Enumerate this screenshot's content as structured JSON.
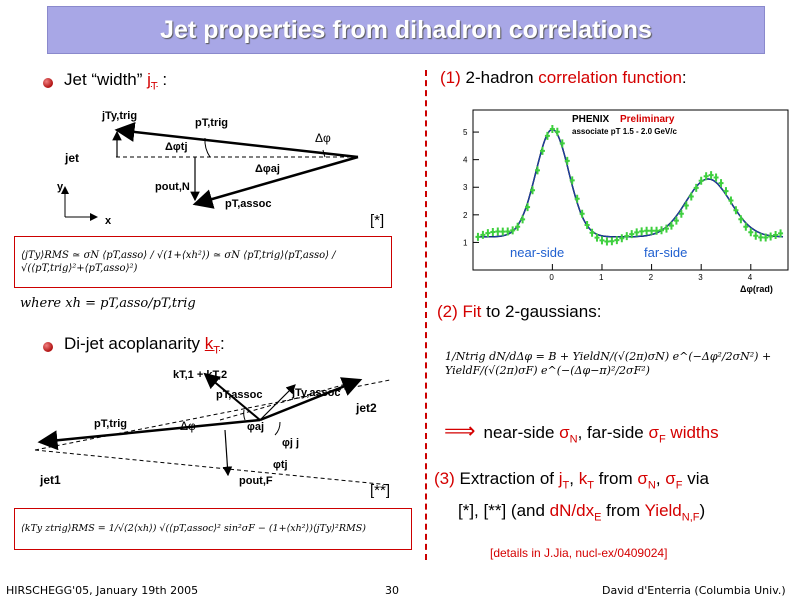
{
  "title": "Jet properties from dihadron correlations",
  "left": {
    "bullet1_prefix": "Jet “width” ",
    "bullet1_sym": "j",
    "bullet1_sub": "T",
    "bullet1_suffix": " :",
    "diag1": {
      "jTy_trig": "jTy,trig",
      "pT_trig": "pT,trig",
      "jet": "jet",
      "dphi_tj": "Δφtj",
      "dphi": "Δφ",
      "dphi_aj": "Δφaj",
      "pout_N": "pout,N",
      "pT_assoc": "pT,assoc",
      "y": "y",
      "x": "x"
    },
    "ref1": "[*]",
    "formula1": "⟨jTy⟩RMS  ≃  σN ⟨pT,asso⟩ / √(1+⟨xh²⟩)  ≃  σN ⟨pT,trig⟩⟨pT,asso⟩ / √(⟨pT,trig⟩²+⟨pT,asso⟩²)",
    "where": "where  xh = pT,asso/pT,trig",
    "bullet2_prefix": "Di-jet acoplanarity ",
    "bullet2_sym": "k",
    "bullet2_sub": "T",
    "bullet2_suffix": ":",
    "diag2": {
      "kT": "kT,1 + kT,2",
      "pT_assoc": "pT,assoc",
      "jTy_assoc": "jTy,assoc",
      "jet2": "jet2",
      "pT_trig": "pT,trig",
      "dphi": "Δφ",
      "phi_aj": "φaj",
      "phi_jj": "φj j",
      "phi_tj": "φtj",
      "jet1": "jet1",
      "pout_F": "pout,F"
    },
    "ref2": "[**]",
    "formula2": "⟨kTy ztrig⟩RMS = 1/√(2⟨xh⟩) √(⟨pT,assoc⟩² sin²σF − (1+⟨xh²⟩)⟨jTy⟩²RMS)"
  },
  "right": {
    "step1_num": "(1)",
    "step1_a": " 2-hadron ",
    "step1_b": "correlation function",
    "step1_c": ":",
    "plot": {
      "logo": "PHENIX",
      "preliminary": "Preliminary",
      "subtitle": "associate pT 1.5 - 2.0 GeV/c",
      "near": "near-side",
      "far": "far-side",
      "xlabel": "Δφ(rad)",
      "yticks": [
        "1",
        "2",
        "3",
        "4",
        "5"
      ],
      "xticks": [
        "0",
        "1",
        "2",
        "3",
        "4"
      ]
    },
    "step2_num": "(2)",
    "step2_a": "Fit",
    "step2_b": " to 2-gaussians:",
    "formula3": "1/Ntrig dN/dΔφ = B + YieldN/(√(2π)σN) e^(−Δφ²/2σN²) + YieldF/(√(2π)σF) e^(−(Δφ−π)²/2σF²)",
    "implies": "⟹",
    "widths_a": "near-side ",
    "widths_sigma": "σ",
    "widths_N": "N",
    "widths_b": ", far-side ",
    "widths_F": "F",
    "widths_c": " widths",
    "step3_num": "(3)",
    "step3_a": " Extraction of ",
    "step3_jT": "j",
    "step3_jTsub": "T",
    "step3_comma": ", ",
    "step3_kT": "k",
    "step3_kTsub": "T",
    "step3_from": " from ",
    "step3_sN": "σ",
    "step3_sNsub": "N",
    "step3_c2": ", ",
    "step3_sF": "σ",
    "step3_sFsub": "F",
    "step3_via": " via",
    "step3_line2a": "[*], [**] (and ",
    "step3_dN": "dN/dx",
    "step3_dNsub": "E",
    "step3_line2b": " from ",
    "step3_yield": "Yield",
    "step3_yieldsub": "N,F",
    "step3_line2c": ")",
    "details": "[details in J.Jia, nucl-ex/0409024]"
  },
  "footer": {
    "left": "HIRSCHEGG'05, January 19th 2005",
    "page": "30",
    "right": "David d'Enterria (Columbia Univ.)"
  }
}
